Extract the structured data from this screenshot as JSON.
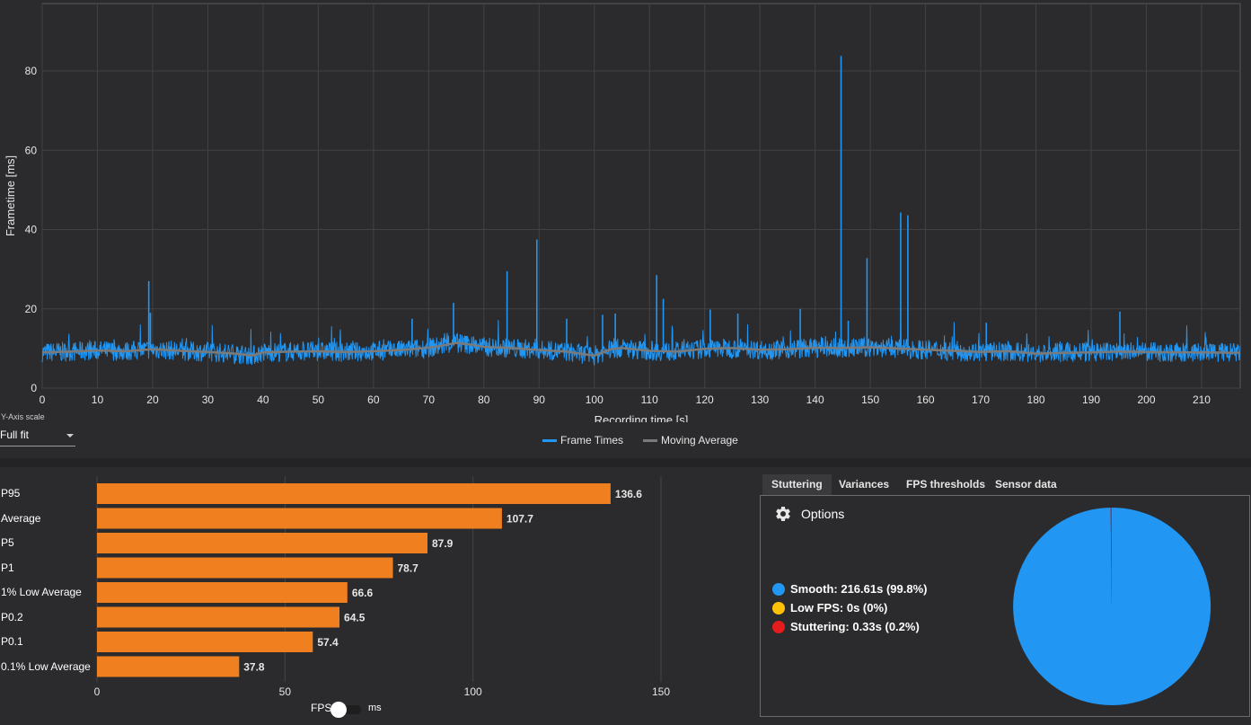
{
  "frametime_chart": {
    "y_axis_title": "Frametime [ms]",
    "x_axis_title": "Recording time [s]",
    "y_ticks": [
      "0",
      "20",
      "40",
      "60",
      "80"
    ],
    "x_ticks": [
      "0",
      "10",
      "20",
      "30",
      "40",
      "50",
      "60",
      "70",
      "80",
      "90",
      "100",
      "110",
      "120",
      "130",
      "140",
      "150",
      "160",
      "170",
      "180",
      "190",
      "200",
      "210"
    ],
    "legend": {
      "frame_times": "Frame Times",
      "moving_average": "Moving Average"
    },
    "colors": {
      "frame_times": "#2196f3",
      "moving_average": "#7a7a7a"
    }
  },
  "y_axis_scale": {
    "caption": "Y-Axis scale",
    "value": "Full fit"
  },
  "bar_chart": {
    "toggle": {
      "left_label": "FPS",
      "right_label": "ms"
    },
    "ticks": [
      "0",
      "50",
      "100",
      "150"
    ],
    "color": "#f07f1f"
  },
  "tabs": [
    {
      "label": "Stuttering",
      "active": true
    },
    {
      "label": "Variances",
      "active": false
    },
    {
      "label": "FPS thresholds",
      "active": false
    },
    {
      "label": "Sensor data",
      "active": false
    }
  ],
  "stuttering": {
    "options_label": "Options",
    "items": [
      {
        "name": "Smooth:",
        "value": "216.61s (99.8%)",
        "color": "#2196f3"
      },
      {
        "name": "Low FPS:",
        "value": "0s (0%)",
        "color": "#ffc107"
      },
      {
        "name": "Stuttering:",
        "value": "0.33s (0.2%)",
        "color": "#e51c1c"
      }
    ]
  },
  "chart_data": [
    {
      "type": "line",
      "title": "",
      "xlabel": "Recording time [s]",
      "ylabel": "Frametime [ms]",
      "xlim": [
        0,
        217
      ],
      "ylim": [
        0,
        97
      ],
      "series": [
        {
          "name": "Frame Times",
          "baseline": 9.3,
          "noise_band": [
            7.0,
            12.0
          ]
        },
        {
          "name": "Moving Average",
          "x": [
            0,
            5,
            10,
            15,
            20,
            25,
            30,
            35,
            38,
            40,
            45,
            50,
            55,
            60,
            65,
            70,
            72,
            75,
            78,
            80,
            85,
            90,
            95,
            98,
            100,
            103,
            105,
            110,
            115,
            120,
            125,
            130,
            135,
            140,
            145,
            150,
            155,
            160,
            165,
            170,
            175,
            180,
            185,
            190,
            195,
            200,
            205,
            210,
            217
          ],
          "y": [
            9,
            9.2,
            9.5,
            9.3,
            9.8,
            9.4,
            9.1,
            8.7,
            8.2,
            9,
            9.2,
            9.3,
            9.1,
            9.3,
            9.6,
            10.2,
            10.6,
            11.4,
            10.9,
            10.4,
            10.1,
            9.6,
            9.2,
            8.6,
            8.2,
            9.8,
            10.1,
            9.4,
            9.2,
            9.9,
            10.1,
            9.7,
            9.8,
            10.2,
            10.1,
            10.3,
            10.0,
            9.7,
            9.4,
            9.1,
            9.3,
            8.7,
            8.9,
            9.0,
            9.2,
            9.1,
            9.0,
            9.0,
            8.9
          ]
        }
      ],
      "spikes": [
        {
          "x": 19.3,
          "y": 27
        },
        {
          "x": 19.6,
          "y": 19
        },
        {
          "x": 67,
          "y": 17.5
        },
        {
          "x": 74.5,
          "y": 21.5
        },
        {
          "x": 84.2,
          "y": 29.5
        },
        {
          "x": 89.6,
          "y": 37.5
        },
        {
          "x": 95,
          "y": 17.5
        },
        {
          "x": 101.5,
          "y": 18.5
        },
        {
          "x": 103.8,
          "y": 18.8
        },
        {
          "x": 111.3,
          "y": 28.5
        },
        {
          "x": 112.5,
          "y": 22.5
        },
        {
          "x": 121,
          "y": 19.8
        },
        {
          "x": 126,
          "y": 18.8
        },
        {
          "x": 137.3,
          "y": 20
        },
        {
          "x": 144.7,
          "y": 83.8
        },
        {
          "x": 146,
          "y": 17
        },
        {
          "x": 149.4,
          "y": 32.8
        },
        {
          "x": 155.5,
          "y": 44.3
        },
        {
          "x": 156.8,
          "y": 43.6
        },
        {
          "x": 171,
          "y": 16.5
        },
        {
          "x": 195.2,
          "y": 19.3
        }
      ]
    },
    {
      "type": "bar",
      "title": "",
      "orientation": "horizontal",
      "xlabel": "FPS",
      "categories": [
        "P95",
        "Average",
        "P5",
        "P1",
        "1% Low Average",
        "P0.2",
        "P0.1",
        "0.1% Low Average"
      ],
      "values": [
        136.6,
        107.7,
        87.9,
        78.7,
        66.6,
        64.5,
        57.4,
        37.8
      ],
      "xlim": [
        0,
        180
      ]
    },
    {
      "type": "pie",
      "title": "",
      "labels": [
        "Smooth",
        "Low FPS",
        "Stuttering"
      ],
      "values": [
        99.8,
        0,
        0.2
      ],
      "colors": [
        "#2196f3",
        "#ffc107",
        "#e51c1c"
      ]
    }
  ]
}
